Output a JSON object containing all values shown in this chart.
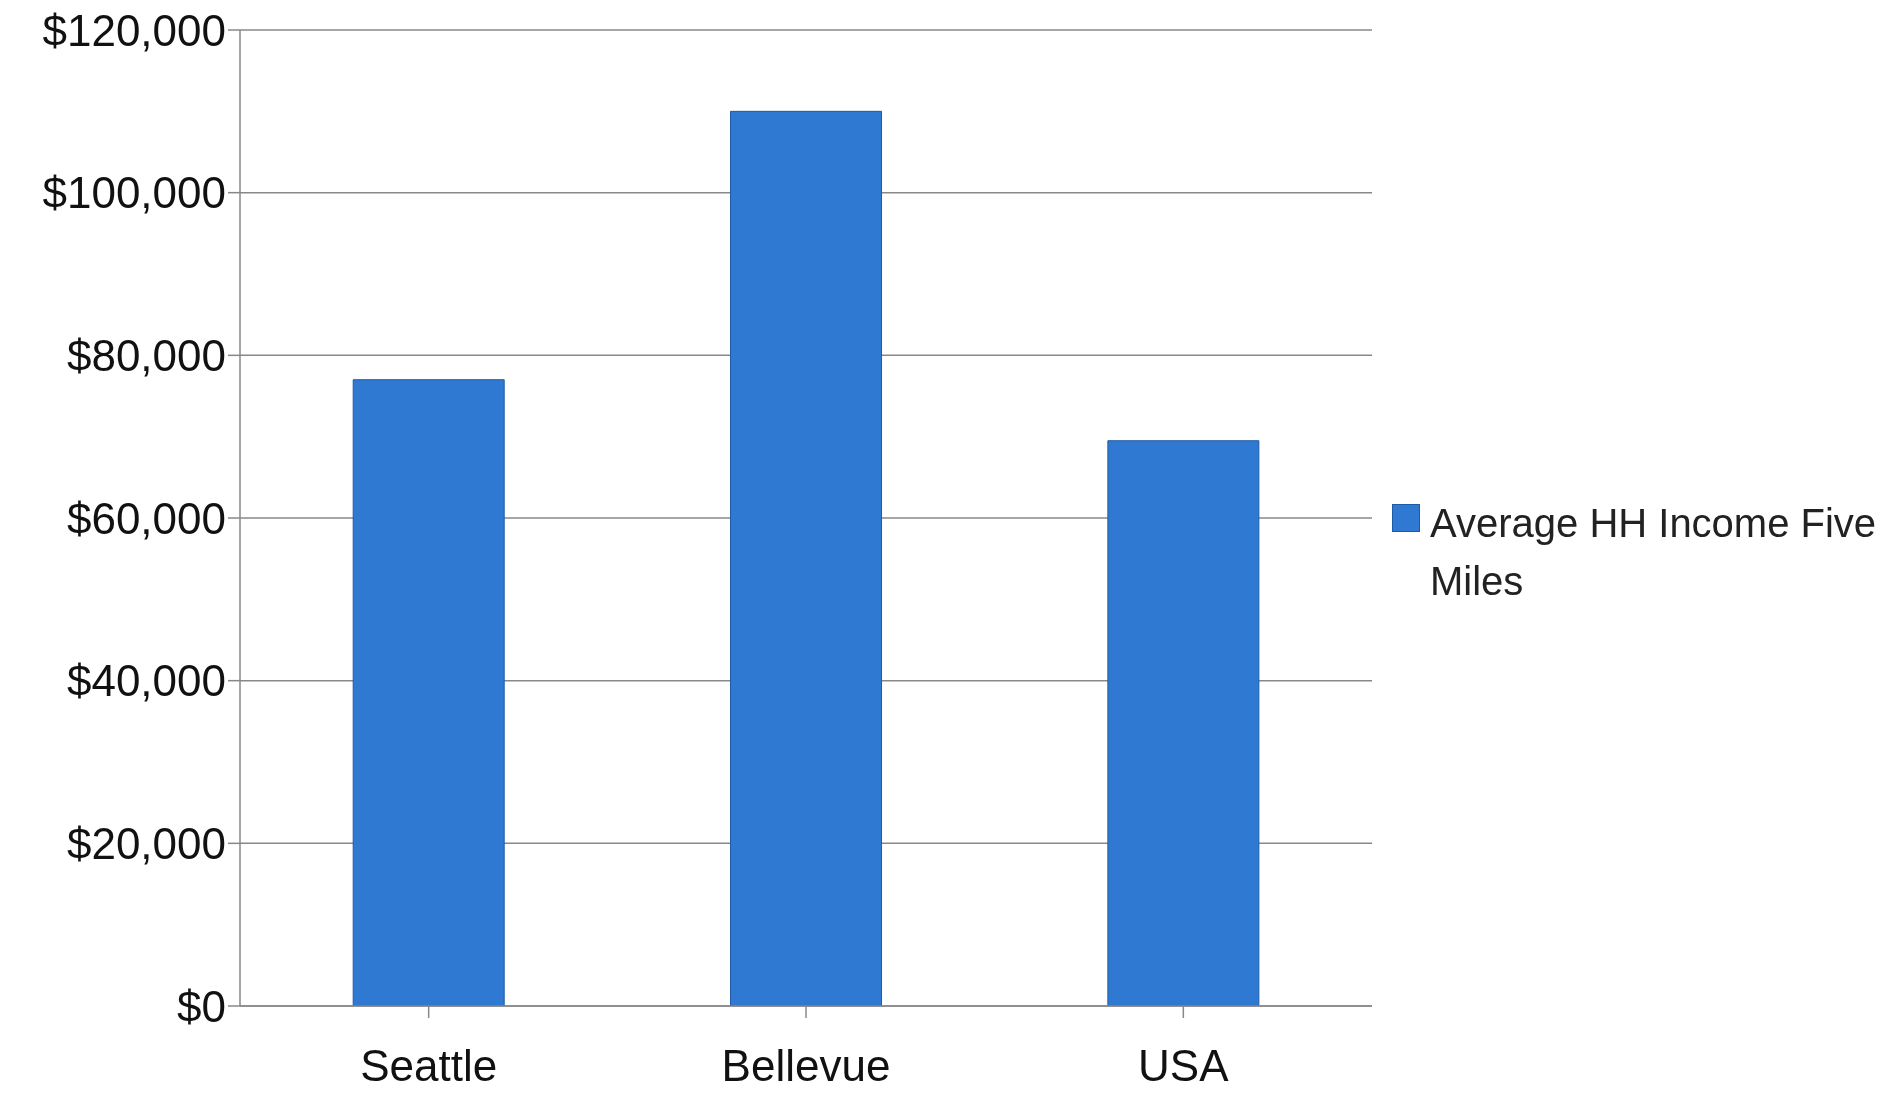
{
  "chart_data": {
    "type": "bar",
    "categories": [
      "Seattle",
      "Bellevue",
      "USA"
    ],
    "series": [
      {
        "name": "Average HH Income Five Miles",
        "color": "#3079d2",
        "values": [
          77000,
          110000,
          69500
        ]
      }
    ],
    "ylim": [
      0,
      120000
    ],
    "yticks": [
      {
        "value": 0,
        "label": "$0"
      },
      {
        "value": 20000,
        "label": "$20,000"
      },
      {
        "value": 40000,
        "label": "$40,000"
      },
      {
        "value": 60000,
        "label": "$60,000"
      },
      {
        "value": 80000,
        "label": "$80,000"
      },
      {
        "value": 100000,
        "label": "$100,000"
      },
      {
        "value": 120000,
        "label": "$120,000"
      }
    ],
    "grid": "y",
    "legend": "right"
  }
}
